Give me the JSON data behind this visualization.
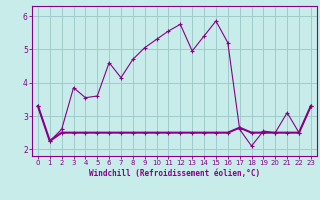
{
  "xlabel": "Windchill (Refroidissement éolien,°C)",
  "xlim": [
    -0.5,
    23.5
  ],
  "ylim": [
    1.8,
    6.3
  ],
  "yticks": [
    2,
    3,
    4,
    5,
    6
  ],
  "xticks": [
    0,
    1,
    2,
    3,
    4,
    5,
    6,
    7,
    8,
    9,
    10,
    11,
    12,
    13,
    14,
    15,
    16,
    17,
    18,
    19,
    20,
    21,
    22,
    23
  ],
  "background_color": "#c8ecea",
  "grid_color": "#a0cccc",
  "line_color": "#880088",
  "series1_x": [
    0,
    1,
    2,
    3,
    4,
    5,
    6,
    7,
    8,
    9,
    10,
    11,
    12,
    13,
    14,
    15,
    16,
    17,
    18,
    19,
    20,
    21,
    22,
    23
  ],
  "series1_y": [
    3.3,
    2.25,
    2.6,
    3.85,
    3.55,
    3.6,
    4.6,
    4.15,
    4.7,
    5.05,
    5.3,
    5.55,
    5.75,
    4.95,
    5.4,
    5.85,
    5.2,
    2.6,
    2.1,
    2.55,
    2.5,
    3.1,
    2.5,
    3.3
  ],
  "series2_x": [
    0,
    1,
    2,
    3,
    4,
    5,
    6,
    7,
    8,
    9,
    10,
    11,
    12,
    13,
    14,
    15,
    16,
    17,
    18,
    19,
    20,
    21,
    22,
    23
  ],
  "series2_y": [
    3.3,
    2.25,
    2.5,
    2.5,
    2.5,
    2.5,
    2.5,
    2.5,
    2.5,
    2.5,
    2.5,
    2.5,
    2.5,
    2.5,
    2.5,
    2.5,
    2.5,
    2.65,
    2.5,
    2.5,
    2.5,
    2.5,
    2.5,
    3.3
  ]
}
